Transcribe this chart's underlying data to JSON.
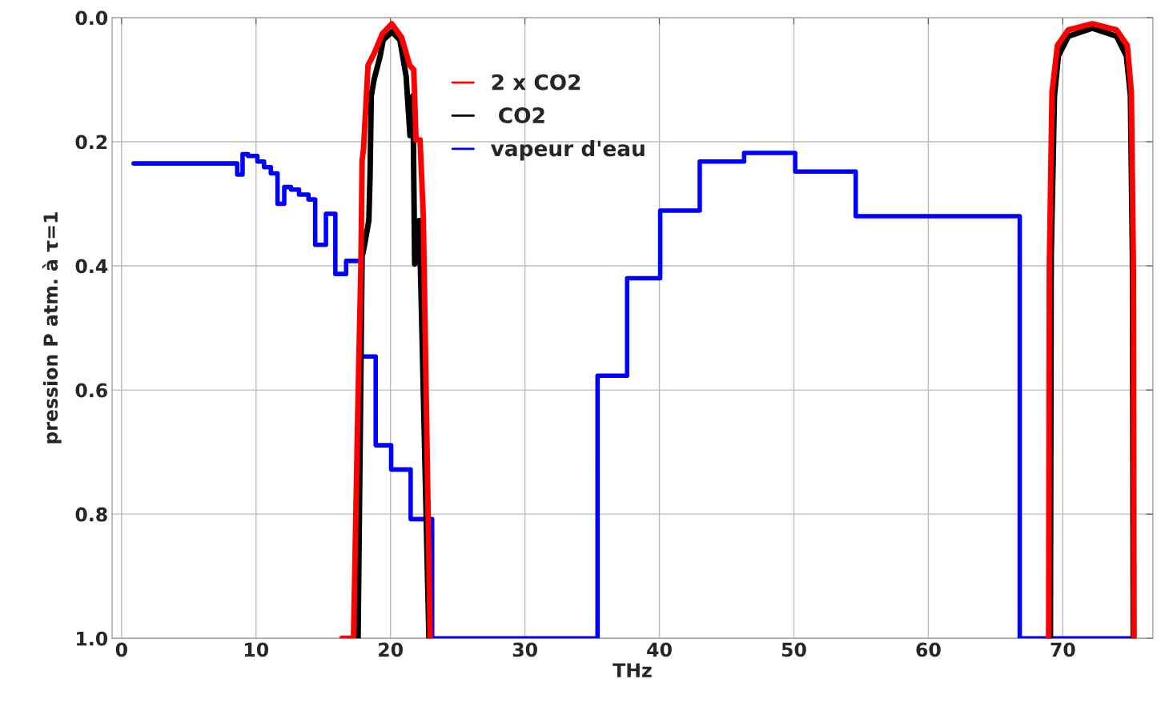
{
  "chart_data": {
    "type": "line",
    "xlabel": "THz",
    "ylabel": "pression P atm. à τ=1",
    "xlim": [
      -0.7,
      76.7
    ],
    "ylim": [
      1.0,
      0.0
    ],
    "xticks": [
      0,
      10,
      20,
      30,
      40,
      50,
      60,
      70
    ],
    "yticks": [
      {
        "value": 0,
        "label": "0.0"
      },
      {
        "value": 0.2,
        "label": "0.2"
      },
      {
        "value": 0.4,
        "label": "0.4"
      },
      {
        "value": 0.6,
        "label": "0.6"
      },
      {
        "value": 0.8,
        "label": "0.8"
      },
      {
        "value": 1,
        "label": "1.0"
      }
    ],
    "grid": true,
    "legend": "top",
    "series": [
      {
        "name": "2 x CO2",
        "color": "#ff0000",
        "x": [
          16.4,
          17.25,
          17.6,
          17.8,
          17.89,
          18.0,
          18.33,
          18.78,
          19.4,
          20.1,
          20.83,
          21.43,
          21.73,
          21.9,
          22.2,
          22.44,
          22.95,
          null,
          68.95,
          69.0,
          69.2,
          69.6,
          70.4,
          72.2,
          74.0,
          74.8,
          75.1,
          75.25,
          75.3
        ],
        "values": [
          1.0,
          1.0,
          0.6,
          0.4,
          0.23,
          0.21,
          0.077,
          0.058,
          0.026,
          0.01,
          0.032,
          0.077,
          0.084,
          0.197,
          0.197,
          0.32,
          1.0,
          null,
          1.0,
          0.4,
          0.12,
          0.045,
          0.02,
          0.01,
          0.02,
          0.045,
          0.12,
          0.4,
          1.0
        ]
      },
      {
        "name": " CO2",
        "color": "#000000",
        "x": [
          17.59,
          17.89,
          18.04,
          18.39,
          18.48,
          18.57,
          18.78,
          19.23,
          19.46,
          20.1,
          20.7,
          21.16,
          21.45,
          21.67,
          21.8,
          22.14,
          22.35,
          22.86,
          null,
          69.08,
          69.14,
          69.38,
          69.67,
          70.42,
          72.2,
          74.0,
          74.73,
          75.03,
          75.18,
          75.24
        ],
        "values": [
          1.0,
          0.385,
          0.37,
          0.327,
          0.255,
          0.126,
          0.1,
          0.062,
          0.036,
          0.023,
          0.036,
          0.094,
          0.19,
          0.126,
          0.397,
          0.327,
          0.514,
          1.0,
          null,
          1.0,
          0.385,
          0.126,
          0.062,
          0.03,
          0.017,
          0.03,
          0.062,
          0.126,
          0.385,
          1.0
        ]
      },
      {
        "name": "vapeur d'eau",
        "color": "#0000ff",
        "type": "step",
        "x": [
          0.9,
          8.6,
          9.0,
          9.4,
          10.1,
          10.6,
          11.1,
          11.6,
          12.1,
          12.6,
          13.2,
          13.9,
          14.4,
          15.2,
          15.9,
          16.7,
          17.8,
          18.9,
          20.05,
          21.5,
          23.1,
          35.4,
          37.6,
          40.06,
          43.0,
          46.3,
          50.1,
          54.6,
          66.8,
          75.2
        ],
        "values": [
          0.235,
          0.253,
          0.22,
          0.223,
          0.232,
          0.241,
          0.251,
          0.3,
          0.273,
          0.277,
          0.285,
          0.293,
          0.366,
          0.316,
          0.413,
          0.392,
          0.546,
          0.689,
          0.728,
          0.808,
          1.0,
          0.577,
          0.42,
          0.311,
          0.232,
          0.218,
          0.248,
          0.32,
          1.0,
          1.0
        ]
      }
    ]
  }
}
